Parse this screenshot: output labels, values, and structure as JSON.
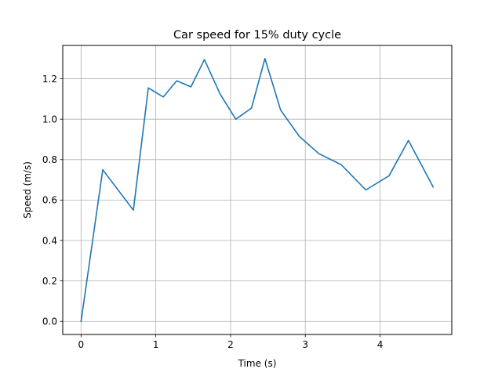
{
  "chart_data": {
    "type": "line",
    "title": "Car speed for 15% duty cycle",
    "xlabel": "Time (s)",
    "ylabel": "Speed (m/s)",
    "xlim": [
      -0.245,
      4.96
    ],
    "ylim": [
      -0.065,
      1.365
    ],
    "grid": true,
    "x_ticks": [
      0,
      1,
      2,
      3,
      4
    ],
    "x_tick_labels": [
      "0",
      "1",
      "2",
      "3",
      "4"
    ],
    "y_ticks": [
      0.0,
      0.2,
      0.4,
      0.6,
      0.8,
      1.0,
      1.2
    ],
    "y_tick_labels": [
      "0.0",
      "0.2",
      "0.4",
      "0.6",
      "0.8",
      "1.0",
      "1.2"
    ],
    "series": [
      {
        "color": "#1f77b4",
        "x": [
          0.0,
          0.29,
          0.7,
          0.9,
          1.1,
          1.28,
          1.47,
          1.65,
          1.86,
          2.07,
          2.28,
          2.46,
          2.67,
          2.92,
          3.18,
          3.48,
          3.81,
          4.12,
          4.38,
          4.71
        ],
        "y": [
          0.0,
          0.75,
          0.55,
          1.155,
          1.11,
          1.19,
          1.16,
          1.295,
          1.125,
          1.0,
          1.055,
          1.3,
          1.045,
          0.915,
          0.83,
          0.775,
          0.65,
          0.72,
          0.895,
          0.665
        ]
      }
    ]
  }
}
